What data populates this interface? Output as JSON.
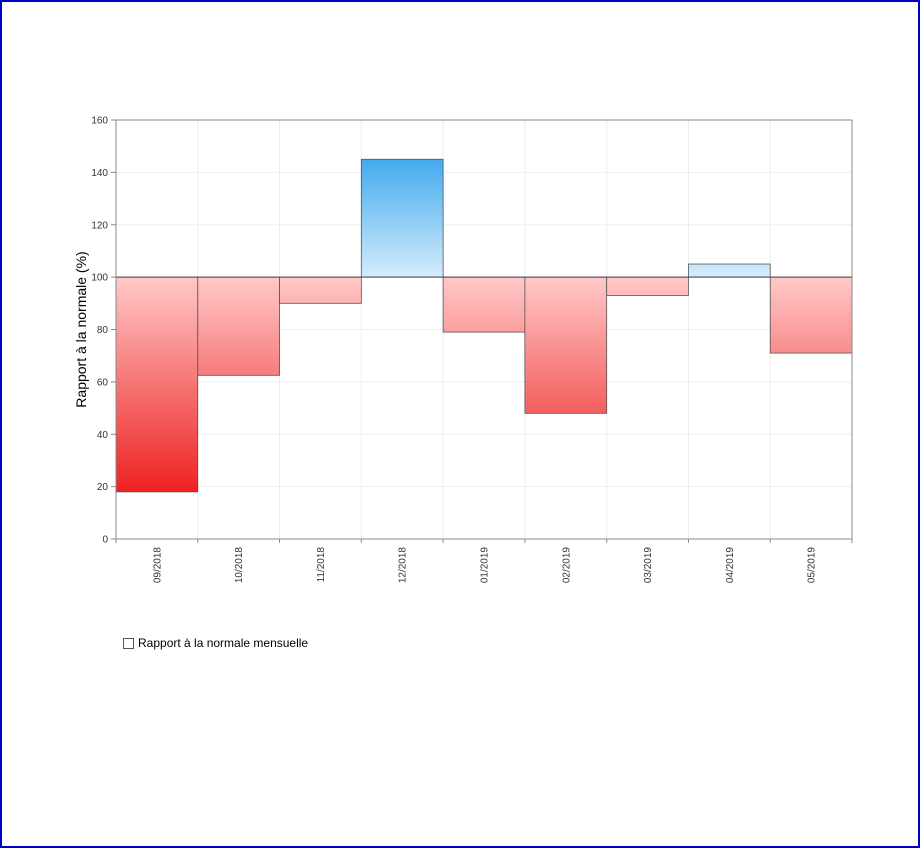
{
  "chart_data": {
    "type": "bar",
    "ylabel": "Rapport à la normale (%)",
    "xlabel": "",
    "ylim": [
      0,
      160
    ],
    "yticks": [
      0,
      20,
      40,
      60,
      80,
      100,
      120,
      140,
      160
    ],
    "baseline": 100,
    "categories": [
      "09/2018",
      "10/2018",
      "11/2018",
      "12/2018",
      "01/2019",
      "02/2019",
      "03/2019",
      "04/2019",
      "05/2019"
    ],
    "series": [
      {
        "name": "Rapport à la normale mensuelle",
        "values": [
          18,
          62.5,
          90,
          145,
          79,
          48,
          93,
          105,
          71
        ]
      }
    ],
    "grid": true,
    "legend_position": "bottom-left",
    "colors": {
      "below_strong": "#ee2222",
      "below_light": "#ffc8c8",
      "above_strong": "#44aaee",
      "above_light": "#d4ecfb",
      "axis": "#888888",
      "grid": "#eeeeee",
      "frame": "#0000c8"
    }
  },
  "legend": {
    "label": "Rapport à la normale mensuelle"
  }
}
